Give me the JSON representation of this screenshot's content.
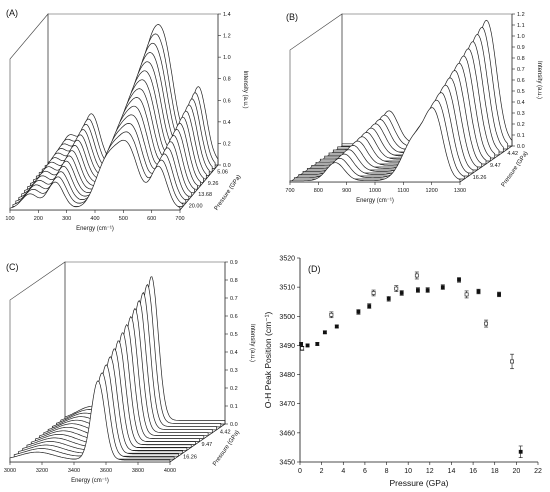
{
  "chart_data": [
    {
      "panel": "(A)",
      "type": "line",
      "subtype": "3d-waterfall",
      "xlabel": "Energy (cm⁻¹)",
      "x_ticks": [
        100,
        200,
        300,
        400,
        500,
        600,
        700
      ],
      "xlim": [
        100,
        700
      ],
      "zlabel": "Intensity (a.u.)",
      "z_ticks": [
        0.0,
        0.2,
        0.4,
        0.6,
        0.8,
        1.0,
        1.2,
        1.4
      ],
      "zlim": [
        0,
        1.4
      ],
      "depth_label": "Pressure (GPa)",
      "depth_ticks": [
        "5.06",
        "9.26",
        "13.68",
        "20.00"
      ],
      "peaks": [
        {
          "center": 170,
          "height": 0.25,
          "width": 40
        },
        {
          "center": 260,
          "height": 0.45,
          "width": 40
        },
        {
          "center": 440,
          "height": 0.75,
          "width": 55
        },
        {
          "center": 515,
          "height": 1.0,
          "width": 55
        },
        {
          "center": 625,
          "height": 0.7,
          "width": 40
        }
      ],
      "n_traces": 14
    },
    {
      "panel": "(B)",
      "type": "line",
      "subtype": "3d-waterfall",
      "xlabel": "Energy (cm⁻¹)",
      "x_ticks": [
        700,
        800,
        900,
        1000,
        1100,
        1200,
        1300
      ],
      "xlim": [
        700,
        1300
      ],
      "zlabel": "Intensity (a.u.)",
      "z_ticks": [
        0.0,
        0.1,
        0.2,
        0.3,
        0.4,
        0.5,
        0.6,
        0.7,
        0.8,
        0.9,
        1.0,
        1.1,
        1.2
      ],
      "zlim": [
        0,
        1.2
      ],
      "depth_label": "Pressure (GPa)",
      "depth_ticks": [
        "4.42",
        "9.47",
        "16.26"
      ],
      "peaks": [
        {
          "center": 860,
          "height": 0.3,
          "width": 45
        },
        {
          "center": 1140,
          "height": 0.7,
          "width": 60
        },
        {
          "center": 1210,
          "height": 1.0,
          "width": 45
        }
      ],
      "n_traces": 13
    },
    {
      "panel": "(C)",
      "type": "line",
      "subtype": "3d-waterfall",
      "xlabel": "Energy (cm⁻¹)",
      "x_ticks": [
        3000,
        3200,
        3400,
        3600,
        3800,
        4000
      ],
      "xlim": [
        3000,
        4000
      ],
      "zlabel": "Intensity (a.u.)",
      "z_ticks": [
        0.0,
        0.1,
        0.2,
        0.3,
        0.4,
        0.5,
        0.6,
        0.7,
        0.8,
        0.9
      ],
      "zlim": [
        0,
        0.9
      ],
      "depth_label": "Pressure (GPa)",
      "depth_ticks": [
        "4.42",
        "9.47",
        "16.26"
      ],
      "peaks": [
        {
          "center": 3170,
          "height": 0.08,
          "width": 150
        },
        {
          "center": 3550,
          "height": 0.8,
          "width": 60
        }
      ],
      "n_traces": 14
    },
    {
      "panel": "(D)",
      "type": "scatter",
      "xlabel": "Pressure (GPa)",
      "ylabel": "O-H Peak Position (cm⁻¹)",
      "xlim": [
        0,
        22
      ],
      "ylim": [
        3450,
        3520
      ],
      "x_ticks": [
        0,
        2,
        4,
        6,
        8,
        10,
        12,
        14,
        16,
        18,
        20,
        22
      ],
      "y_ticks": [
        3450,
        3460,
        3470,
        3480,
        3490,
        3500,
        3510,
        3520
      ],
      "series": [
        {
          "marker": "filled-square",
          "points": [
            {
              "x": 0.1,
              "y": 3490.5,
              "err": 0.5
            },
            {
              "x": 0.7,
              "y": 3490.0,
              "err": 0.5
            },
            {
              "x": 1.6,
              "y": 3490.5,
              "err": 0.5
            },
            {
              "x": 2.3,
              "y": 3494.5,
              "err": 0.5
            },
            {
              "x": 3.4,
              "y": 3496.5,
              "err": 0.5
            },
            {
              "x": 5.4,
              "y": 3501.5,
              "err": 0.8
            },
            {
              "x": 6.4,
              "y": 3503.5,
              "err": 0.8
            },
            {
              "x": 8.2,
              "y": 3506.0,
              "err": 0.8
            },
            {
              "x": 9.4,
              "y": 3508.0,
              "err": 0.8
            },
            {
              "x": 10.9,
              "y": 3509.0,
              "err": 0.8
            },
            {
              "x": 11.8,
              "y": 3509.0,
              "err": 0.8
            },
            {
              "x": 13.2,
              "y": 3510.0,
              "err": 0.8
            },
            {
              "x": 14.7,
              "y": 3512.5,
              "err": 0.8
            },
            {
              "x": 16.5,
              "y": 3508.5,
              "err": 0.8
            },
            {
              "x": 18.4,
              "y": 3507.5,
              "err": 0.8
            },
            {
              "x": 20.4,
              "y": 3453.5,
              "err": 2.0
            }
          ]
        },
        {
          "marker": "open-square",
          "points": [
            {
              "x": 0.2,
              "y": 3489.0,
              "err": 0.7
            },
            {
              "x": 2.9,
              "y": 3500.5,
              "err": 1.0
            },
            {
              "x": 6.8,
              "y": 3508.0,
              "err": 1.0
            },
            {
              "x": 8.9,
              "y": 3509.5,
              "err": 1.0
            },
            {
              "x": 10.8,
              "y": 3514.0,
              "err": 1.2
            },
            {
              "x": 15.4,
              "y": 3507.5,
              "err": 1.2
            },
            {
              "x": 17.2,
              "y": 3497.5,
              "err": 1.2
            },
            {
              "x": 19.6,
              "y": 3484.5,
              "err": 2.5
            }
          ]
        }
      ]
    }
  ]
}
